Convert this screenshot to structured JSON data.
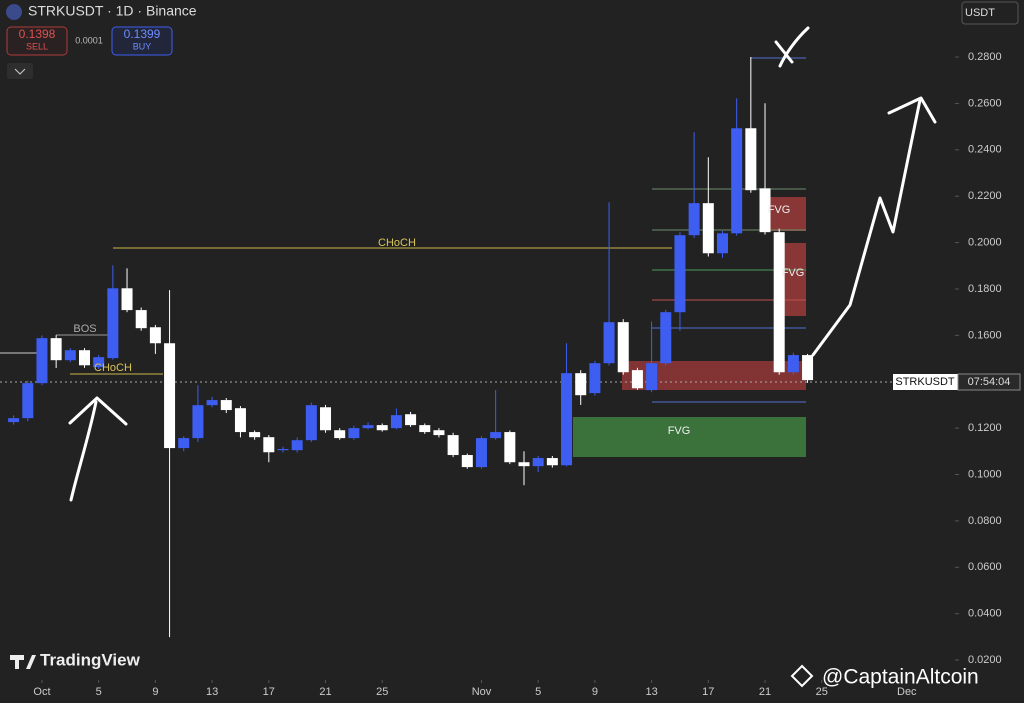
{
  "header": {
    "symbol": "STRKUSDT · 1D · Binance",
    "sell_price": "0.1398",
    "sell_label": "SELL",
    "spread": "0.0001",
    "buy_price": "0.1399",
    "buy_label": "BUY",
    "currency": "USDT"
  },
  "chart_data": {
    "type": "candlestick",
    "x": [
      -2,
      -1,
      0,
      1,
      2,
      3,
      4,
      5,
      6,
      7,
      8,
      9,
      10,
      11,
      12,
      13,
      14,
      15,
      16,
      17,
      18,
      19,
      20,
      21,
      22,
      23,
      24,
      25,
      26,
      27,
      28,
      29,
      30,
      31,
      32,
      33,
      34,
      35,
      36,
      37,
      38,
      39,
      40,
      41,
      42,
      43,
      44,
      45,
      46,
      47,
      48,
      49,
      50,
      51,
      52,
      53,
      54
    ],
    "open": [
      0.1226,
      0.1243,
      0.1394,
      0.1588,
      0.1493,
      0.1536,
      0.1463,
      0.1502,
      0.1803,
      0.1709,
      0.1635,
      0.1566,
      0.1114,
      0.1157,
      0.1299,
      0.1321,
      0.1286,
      0.1183,
      0.1161,
      0.1105,
      0.1105,
      0.1148,
      0.129,
      0.1191,
      0.1157,
      0.12,
      0.1213,
      0.12,
      0.126,
      0.1213,
      0.1191,
      0.117,
      0.1084,
      0.1032,
      0.1157,
      0.1183,
      0.1053,
      0.1036,
      0.1071,
      0.104,
      0.1437,
      0.1351,
      0.148,
      0.1657,
      0.145,
      0.1364,
      0.148,
      0.17,
      0.2032,
      0.217,
      0.1954,
      0.204,
      0.2493,
      0.2234,
      0.2045,
      0.1441,
      0.1515
    ],
    "high": [
      0.1255,
      0.1405,
      0.16,
      0.1601,
      0.1545,
      0.1545,
      0.1515,
      0.1902,
      0.1889,
      0.172,
      0.1645,
      0.1795,
      0.1165,
      0.1385,
      0.1335,
      0.133,
      0.1295,
      0.119,
      0.117,
      0.112,
      0.116,
      0.131,
      0.13,
      0.12,
      0.121,
      0.1225,
      0.122,
      0.1285,
      0.127,
      0.122,
      0.12,
      0.118,
      0.109,
      0.1165,
      0.1364,
      0.119,
      0.11,
      0.108,
      0.108,
      0.1566,
      0.145,
      0.149,
      0.2174,
      0.167,
      0.146,
      0.166,
      0.171,
      0.2045,
      0.2476,
      0.2368,
      0.205,
      0.2622,
      0.28,
      0.2601,
      0.206,
      0.1525,
      0.152
    ],
    "low": [
      0.1215,
      0.123,
      0.1385,
      0.1459,
      0.1485,
      0.146,
      0.1455,
      0.1495,
      0.17,
      0.162,
      0.152,
      0.0299,
      0.11,
      0.114,
      0.129,
      0.1265,
      0.116,
      0.115,
      0.1053,
      0.1095,
      0.1095,
      0.114,
      0.118,
      0.115,
      0.115,
      0.1195,
      0.1185,
      0.1195,
      0.1205,
      0.1175,
      0.116,
      0.1075,
      0.1025,
      0.1025,
      0.115,
      0.1045,
      0.0954,
      0.101,
      0.103,
      0.1035,
      0.13,
      0.134,
      0.147,
      0.143,
      0.1365,
      0.1355,
      0.147,
      0.162,
      0.202,
      0.194,
      0.1935,
      0.203,
      0.2215,
      0.2035,
      0.143,
      0.143,
      0.1395
    ],
    "close": [
      0.1243,
      0.1394,
      0.1588,
      0.1493,
      0.1536,
      0.1471,
      0.1506,
      0.1803,
      0.1709,
      0.1631,
      0.1566,
      0.1114,
      0.1157,
      0.1299,
      0.1321,
      0.1278,
      0.1183,
      0.1161,
      0.1096,
      0.111,
      0.1148,
      0.1299,
      0.1191,
      0.1157,
      0.12,
      0.1213,
      0.1191,
      0.1256,
      0.1213,
      0.1183,
      0.117,
      0.1084,
      0.1032,
      0.1157,
      0.1183,
      0.1053,
      0.1036,
      0.1071,
      0.104,
      0.1437,
      0.1342,
      0.148,
      0.1657,
      0.1441,
      0.1372,
      0.148,
      0.17,
      0.2032,
      0.217,
      0.1954,
      0.204,
      0.2493,
      0.2226,
      0.2045,
      0.1441,
      0.1515,
      0.1407
    ],
    "up_color": "#3d5ef0",
    "down_color": "#ffffff",
    "xlim": [
      -2.96,
      64.4
    ],
    "ylim": [
      0.0114,
      0.3046
    ],
    "xticks": [
      {
        "value": 0,
        "label": "Oct"
      },
      {
        "value": 4,
        "label": "5"
      },
      {
        "value": 8,
        "label": "9"
      },
      {
        "value": 12,
        "label": "13"
      },
      {
        "value": 16,
        "label": "17"
      },
      {
        "value": 20,
        "label": "21"
      },
      {
        "value": 24,
        "label": "25"
      },
      {
        "value": 31,
        "label": "Nov"
      },
      {
        "value": 35,
        "label": "5"
      },
      {
        "value": 39,
        "label": "9"
      },
      {
        "value": 43,
        "label": "13"
      },
      {
        "value": 47,
        "label": "17"
      },
      {
        "value": 51,
        "label": "21"
      },
      {
        "value": 55,
        "label": "25"
      },
      {
        "value": 61,
        "label": "Dec"
      }
    ],
    "yticks": [
      {
        "value": 0.28,
        "label": "0.2800"
      },
      {
        "value": 0.26,
        "label": "0.2600"
      },
      {
        "value": 0.24,
        "label": "0.2400"
      },
      {
        "value": 0.22,
        "label": "0.2200"
      },
      {
        "value": 0.2,
        "label": "0.2000"
      },
      {
        "value": 0.18,
        "label": "0.1800"
      },
      {
        "value": 0.16,
        "label": "0.1600"
      },
      {
        "value": 0.14,
        "label": "0.1400"
      },
      {
        "value": 0.12,
        "label": "0.1200"
      },
      {
        "value": 0.1,
        "label": "0.1000"
      },
      {
        "value": 0.08,
        "label": "0.0800"
      },
      {
        "value": 0.06,
        "label": "0.0600"
      },
      {
        "value": 0.04,
        "label": "0.0400"
      },
      {
        "value": 0.02,
        "label": "0.0200"
      }
    ]
  },
  "annotations": {
    "choch_upper": "CHoCH",
    "choch_lower": "CHoCH",
    "bos": "BOS",
    "fvg_green": "FVG",
    "fvg_red_top": "FVG",
    "fvg_red_mid": "FVG"
  },
  "price_tag": {
    "symbol": "STRKUSDT",
    "countdown": "07:54:04"
  },
  "watermark": "TradingView",
  "credit": "@CaptainAltcoin"
}
